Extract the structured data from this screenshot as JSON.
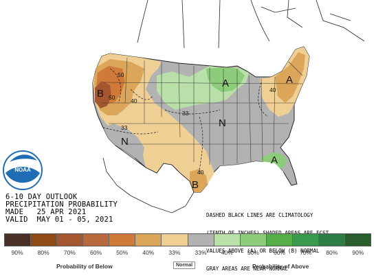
{
  "title_lines": [
    "6-10 DAY OUTLOOK",
    "PRECIPITATION PROBABILITY",
    "MADE   25 APR 2021",
    "VALID  MAY 01 - 05, 2021"
  ],
  "notes": [
    "DASHED BLACK LINES ARE CLIMATOLOGY",
    "(TENTH OF INCHES) SHADED AREAS ARE FCST",
    "VALUES ABOVE (A) OR BELOW (B) NORMAL",
    "GRAY AREAS ARE NEAR-NORMAL"
  ],
  "logo_text": "NOAA",
  "legend": {
    "labels": [
      "90%",
      "80%",
      "70%",
      "60%",
      "50%",
      "40%",
      "33%",
      "33%",
      "40%",
      "50%",
      "60%",
      "70%",
      "80%",
      "90%"
    ],
    "colors": [
      "#4a2f27",
      "#8f4a16",
      "#a4572f",
      "#b86a3c",
      "#d07a3a",
      "#dba55a",
      "#f0cf95",
      "#b2b2b2",
      "#b8e0a8",
      "#8ccc7a",
      "#56ae48",
      "#3a9b4e",
      "#2e7d47",
      "#2b5e2e"
    ],
    "caption_below": "Probability of Below",
    "caption_normal": "Normal",
    "caption_above": "Probability of Above"
  },
  "map_labels": {
    "below_west": "B",
    "below_texas": "B",
    "above_upper_midwest": "A",
    "above_northeast": "A",
    "above_florida": "A",
    "normal_plains": "N",
    "normal_southwest": "N"
  },
  "contour_values": {
    "c50_oregon": "50",
    "c50_calif": "50",
    "c40_nevada": "40",
    "c33_socal": "33",
    "c33_plains": "33",
    "c40_texas": "40",
    "c40_east": "40"
  },
  "colors": {
    "ocean": "#ffffff",
    "canada": "#ffffff",
    "normal": "#b2b2b2",
    "below_33": "#f0cf95",
    "below_40": "#dba55a",
    "below_50": "#d07a3a",
    "below_60": "#b86a3c",
    "above_33": "#b8e0a8",
    "above_40": "#8ccc7a",
    "above_50": "#56ae48",
    "logo_blue": "#1f6db5"
  }
}
